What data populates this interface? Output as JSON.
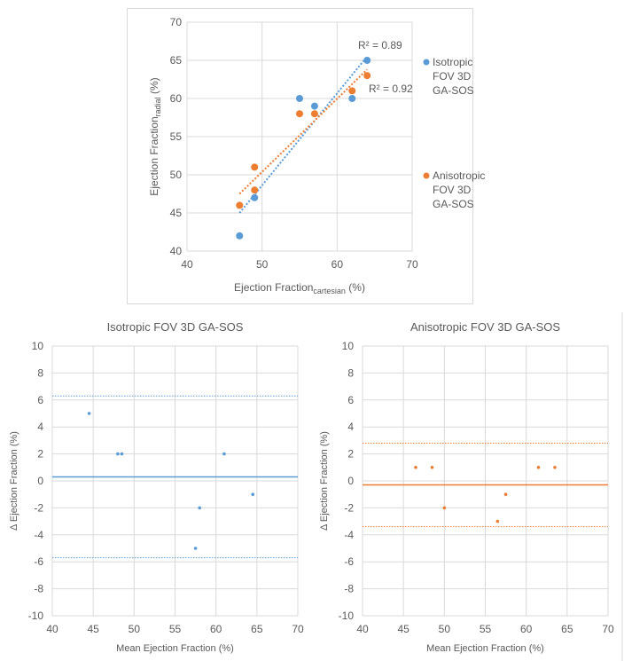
{
  "colors": {
    "blue": "#5B9BD5",
    "orange": "#ED7D31",
    "grid": "#D9D9D9",
    "text": "#595959",
    "frame": "#D9D9D9"
  },
  "chart_data": [
    {
      "type": "scatter",
      "title": "",
      "xlabel": "Ejection Fraction",
      "xlabel_sub": "cartesian",
      "xlabel_suffix": " (%)",
      "ylabel": "Ejection Fraction",
      "ylabel_sub": "radial",
      "ylabel_suffix": " (%)",
      "xlim": [
        40,
        70
      ],
      "ylim": [
        40,
        70
      ],
      "xticks": [
        40,
        50,
        60,
        70
      ],
      "yticks": [
        40,
        45,
        50,
        55,
        60,
        65,
        70
      ],
      "legend_position": "right",
      "series": [
        {
          "name": "Isotropic FOV 3D GA-SOS",
          "legend_lines": [
            "Isotropic",
            "FOV 3D",
            "GA-SOS"
          ],
          "color": "#5B9BD5",
          "x": [
            47,
            49,
            55,
            57,
            62,
            64
          ],
          "y": [
            42,
            47,
            60,
            59,
            60,
            65
          ],
          "trendline": {
            "x": [
              47,
              64
            ],
            "y": [
              45.0,
              65.5
            ]
          },
          "r2_label": "R² = 0.89"
        },
        {
          "name": "Anisotropic FOV 3D GA-SOS",
          "legend_lines": [
            "Anisotropic",
            "FOV 3D",
            "GA-SOS"
          ],
          "color": "#ED7D31",
          "x": [
            47,
            49,
            49,
            55,
            57,
            62,
            64
          ],
          "y": [
            46,
            51,
            48,
            58,
            58,
            61,
            63
          ],
          "trendline": {
            "x": [
              47,
              64
            ],
            "y": [
              47.5,
              63.8
            ]
          },
          "r2_label": "R² = 0.92"
        }
      ]
    },
    {
      "type": "scatter",
      "title": "Isotropic FOV 3D GA-SOS",
      "xlabel": "Mean Ejection Fraction (%)",
      "ylabel": "Δ Ejection Fraction (%)",
      "xlim": [
        40,
        70
      ],
      "ylim": [
        -10,
        10
      ],
      "xticks": [
        40,
        45,
        50,
        55,
        60,
        65,
        70
      ],
      "yticks": [
        -10,
        -8,
        -6,
        -4,
        -2,
        0,
        2,
        4,
        6,
        8,
        10
      ],
      "color": "#5B9BD5",
      "x": [
        44.5,
        48,
        48.5,
        57.5,
        58,
        61,
        64.5
      ],
      "y": [
        5,
        2,
        2,
        -5,
        -2,
        2,
        -1
      ],
      "mean_line": 0.3,
      "upper_limit": 6.3,
      "lower_limit": -5.7
    },
    {
      "type": "scatter",
      "title": "Anisotropic FOV 3D GA-SOS",
      "xlabel": "Mean Ejection Fraction (%)",
      "ylabel": "Δ Ejection Fraction (%)",
      "xlim": [
        40,
        70
      ],
      "ylim": [
        -10,
        10
      ],
      "xticks": [
        40,
        45,
        50,
        55,
        60,
        65,
        70
      ],
      "yticks": [
        -10,
        -8,
        -6,
        -4,
        -2,
        0,
        2,
        4,
        6,
        8,
        10
      ],
      "color": "#ED7D31",
      "x": [
        46.5,
        48.5,
        50,
        56.5,
        57.5,
        61.5,
        63.5
      ],
      "y": [
        1,
        1,
        -2,
        -3,
        -1,
        1,
        1
      ],
      "mean_line": -0.3,
      "upper_limit": 2.8,
      "lower_limit": -3.4
    }
  ]
}
